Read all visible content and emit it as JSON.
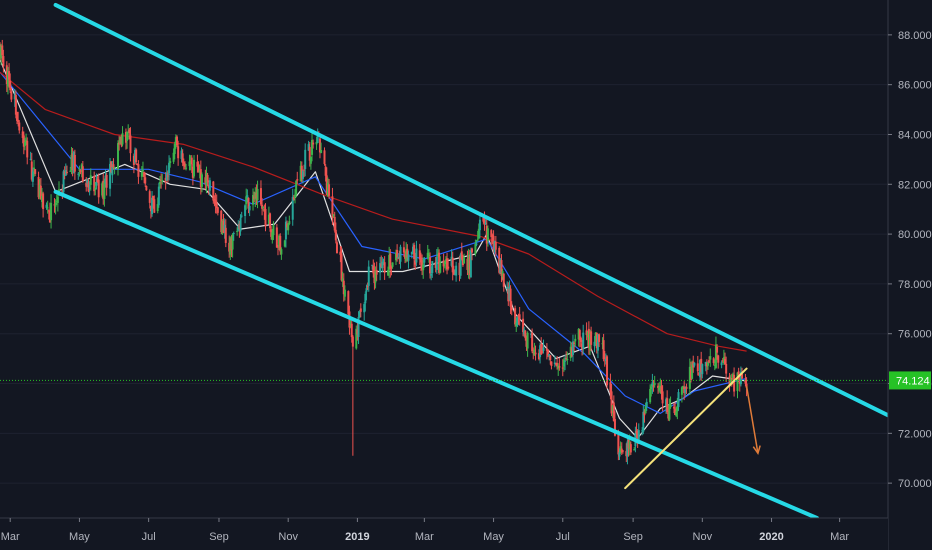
{
  "chart_data": {
    "type": "candlestick",
    "x_axis": {
      "ticks": [
        "Mar",
        "May",
        "Jul",
        "Sep",
        "Nov",
        "2019",
        "Mar",
        "May",
        "Jul",
        "Sep",
        "Nov",
        "2020",
        "Mar"
      ],
      "bold_ticks": [
        "2019",
        "2020"
      ]
    },
    "y_axis": {
      "ticks": [
        "70.000",
        "72.000",
        "74.000",
        "76.000",
        "78.000",
        "80.000",
        "82.000",
        "84.000",
        "86.000",
        "88.000"
      ],
      "range": [
        68.6,
        89.4
      ]
    },
    "last_price": {
      "value": 74.124,
      "label": "74.124"
    },
    "series": [
      {
        "kind": "price",
        "key_points": [
          [
            "2018-02-20",
            87.5
          ],
          [
            "2018-03-20",
            82.5
          ],
          [
            "2018-04-05",
            80.8
          ],
          [
            "2018-04-25",
            83.0
          ],
          [
            "2018-05-20",
            81.5
          ],
          [
            "2018-06-10",
            84.2
          ],
          [
            "2018-07-05",
            81.0
          ],
          [
            "2018-07-25",
            83.5
          ],
          [
            "2018-08-25",
            81.8
          ],
          [
            "2018-09-10",
            79.5
          ],
          [
            "2018-10-01",
            81.8
          ],
          [
            "2018-10-25",
            79.5
          ],
          [
            "2018-11-15",
            83.0
          ],
          [
            "2018-11-28",
            83.8
          ],
          [
            "2018-12-20",
            78.0
          ],
          [
            "2018-12-28",
            75.3
          ],
          [
            "2019-01-10",
            78.3
          ],
          [
            "2019-02-10",
            79.2
          ],
          [
            "2019-03-10",
            78.8
          ],
          [
            "2019-04-10",
            78.8
          ],
          [
            "2019-04-20",
            80.5
          ],
          [
            "2019-05-05",
            79.0
          ],
          [
            "2019-05-25",
            76.0
          ],
          [
            "2019-06-25",
            74.5
          ],
          [
            "2019-07-15",
            75.8
          ],
          [
            "2019-08-05",
            75.6
          ],
          [
            "2019-08-20",
            71.0
          ],
          [
            "2019-09-05",
            72.0
          ],
          [
            "2019-09-20",
            73.9
          ],
          [
            "2019-10-05",
            72.8
          ],
          [
            "2019-10-25",
            74.6
          ],
          [
            "2019-11-15",
            75.2
          ],
          [
            "2019-11-28",
            74.0
          ],
          [
            "2019-12-10",
            74.12
          ]
        ],
        "low_wick": {
          "date": "2018-12-28",
          "value": 71.1
        }
      }
    ],
    "moving_averages": [
      {
        "color": "#e0e0e0",
        "key_points": [
          [
            "2018-02-20",
            87.0
          ],
          [
            "2018-04-10",
            81.7
          ],
          [
            "2018-06-10",
            82.8
          ],
          [
            "2018-07-20",
            82.0
          ],
          [
            "2018-08-20",
            81.8
          ],
          [
            "2018-09-20",
            80.2
          ],
          [
            "2018-10-20",
            80.4
          ],
          [
            "2018-11-25",
            82.5
          ],
          [
            "2018-12-25",
            78.5
          ],
          [
            "2019-02-10",
            78.5
          ],
          [
            "2019-04-15",
            79.2
          ],
          [
            "2019-04-25",
            80.0
          ],
          [
            "2019-05-20",
            76.8
          ],
          [
            "2019-06-25",
            75.0
          ],
          [
            "2019-07-25",
            75.5
          ],
          [
            "2019-08-20",
            72.6
          ],
          [
            "2019-09-05",
            71.8
          ],
          [
            "2019-09-25",
            73.0
          ],
          [
            "2019-10-15",
            73.4
          ],
          [
            "2019-11-10",
            74.3
          ],
          [
            "2019-12-10",
            74.1
          ]
        ]
      },
      {
        "color": "#2962ff",
        "key_points": [
          [
            "2018-02-20",
            86.5
          ],
          [
            "2018-05-01",
            82.6
          ],
          [
            "2018-07-01",
            82.6
          ],
          [
            "2018-08-15",
            82.1
          ],
          [
            "2018-10-01",
            81.2
          ],
          [
            "2018-11-25",
            82.3
          ],
          [
            "2019-01-05",
            79.5
          ],
          [
            "2019-03-01",
            79.0
          ],
          [
            "2019-04-25",
            79.8
          ],
          [
            "2019-06-01",
            77.0
          ],
          [
            "2019-07-20",
            75.2
          ],
          [
            "2019-08-25",
            73.5
          ],
          [
            "2019-09-25",
            72.8
          ],
          [
            "2019-10-25",
            73.7
          ],
          [
            "2019-12-10",
            74.2
          ]
        ]
      },
      {
        "color": "#b71c1c",
        "key_points": [
          [
            "2018-02-20",
            86.5
          ],
          [
            "2018-04-01",
            85.0
          ],
          [
            "2018-06-01",
            84.0
          ],
          [
            "2018-08-01",
            83.6
          ],
          [
            "2018-10-01",
            82.7
          ],
          [
            "2018-12-01",
            81.6
          ],
          [
            "2019-02-01",
            80.6
          ],
          [
            "2019-04-20",
            79.9
          ],
          [
            "2019-06-01",
            79.2
          ],
          [
            "2019-08-01",
            77.5
          ],
          [
            "2019-10-01",
            76.0
          ],
          [
            "2019-11-15",
            75.5
          ],
          [
            "2019-12-10",
            75.3
          ]
        ]
      }
    ],
    "drawings": {
      "channel_upper": {
        "color": "#26d9e6",
        "from": [
          "2018-04-10",
          89.2
        ],
        "to": [
          "2020-05-15",
          72.0
        ]
      },
      "channel_lower": {
        "color": "#26d9e6",
        "from": [
          "2018-04-10",
          81.7
        ],
        "to": [
          "2020-02-10",
          68.6
        ]
      },
      "trendline": {
        "color": "#f5e27a",
        "from": [
          "2019-08-25",
          69.8
        ],
        "to": [
          "2019-12-10",
          74.6
        ]
      },
      "forecast_arrow": {
        "color": "#e07b39",
        "from": [
          "2019-12-10",
          73.9
        ],
        "to": [
          "2019-12-20",
          71.2
        ]
      },
      "price_line_color": "#26c226"
    },
    "colors": {
      "up": "#26a69a",
      "up_green": "#3cb44b",
      "down": "#ef5350",
      "background": "#131722",
      "grid": "#1e2230"
    }
  }
}
